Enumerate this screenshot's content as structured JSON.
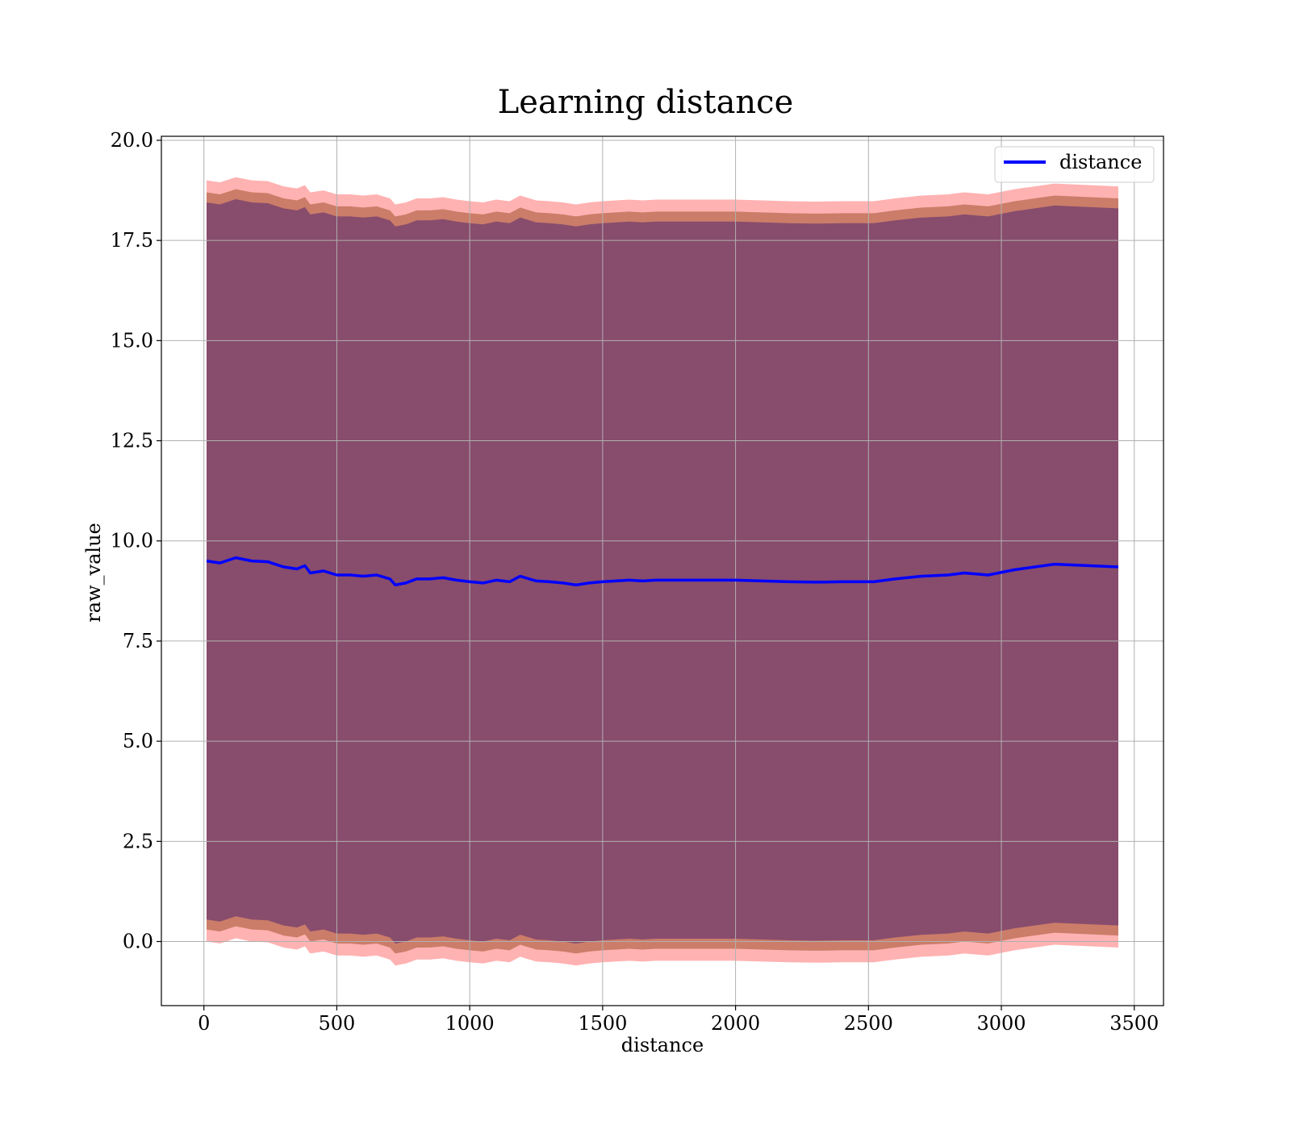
{
  "chart_data": {
    "type": "area",
    "title": "Learning distance",
    "xlabel": "distance",
    "ylabel": "raw_value",
    "xlim": [
      -160,
      3610
    ],
    "ylim": [
      -1.6,
      20.1
    ],
    "xticks": [
      0,
      500,
      1000,
      1500,
      2000,
      2500,
      3000,
      3500
    ],
    "yticks": [
      0.0,
      2.5,
      5.0,
      7.5,
      10.0,
      12.5,
      15.0,
      17.5,
      20.0
    ],
    "xtick_labels": [
      "0",
      "500",
      "1000",
      "1500",
      "2000",
      "2500",
      "3000",
      "3500"
    ],
    "ytick_labels": [
      "0.0",
      "2.5",
      "5.0",
      "7.5",
      "10.0",
      "12.5",
      "15.0",
      "17.5",
      "20.0"
    ],
    "grid": true,
    "legend_position": "top-right",
    "colors": {
      "line": "#0000ff",
      "band_outer": "#ff0000",
      "band_mid": "#a0522d",
      "band_inner": "#5b2c6f"
    },
    "x": [
      10,
      60,
      120,
      180,
      240,
      300,
      350,
      380,
      400,
      450,
      500,
      550,
      600,
      650,
      700,
      720,
      760,
      800,
      850,
      900,
      950,
      1000,
      1050,
      1100,
      1150,
      1190,
      1250,
      1300,
      1350,
      1400,
      1450,
      1500,
      1550,
      1600,
      1650,
      1700,
      1800,
      1900,
      2000,
      2100,
      2200,
      2300,
      2400,
      2480,
      2520,
      2600,
      2700,
      2800,
      2860,
      2950,
      3050,
      3200,
      3440
    ],
    "series": [
      {
        "name": "distance",
        "values": [
          9.5,
          9.45,
          9.58,
          9.5,
          9.48,
          9.35,
          9.3,
          9.38,
          9.2,
          9.25,
          9.15,
          9.15,
          9.12,
          9.15,
          9.05,
          8.9,
          8.95,
          9.05,
          9.05,
          9.08,
          9.02,
          8.98,
          8.95,
          9.02,
          8.98,
          9.12,
          9.0,
          8.98,
          8.95,
          8.9,
          8.95,
          8.98,
          9.0,
          9.02,
          9.0,
          9.02,
          9.02,
          9.02,
          9.02,
          9.0,
          8.98,
          8.97,
          8.98,
          8.98,
          8.98,
          9.05,
          9.12,
          9.15,
          9.2,
          9.15,
          9.28,
          9.42,
          9.35
        ]
      }
    ],
    "band_offsets": {
      "inner": 8.95,
      "mid": 9.2,
      "outer": 9.5
    }
  }
}
